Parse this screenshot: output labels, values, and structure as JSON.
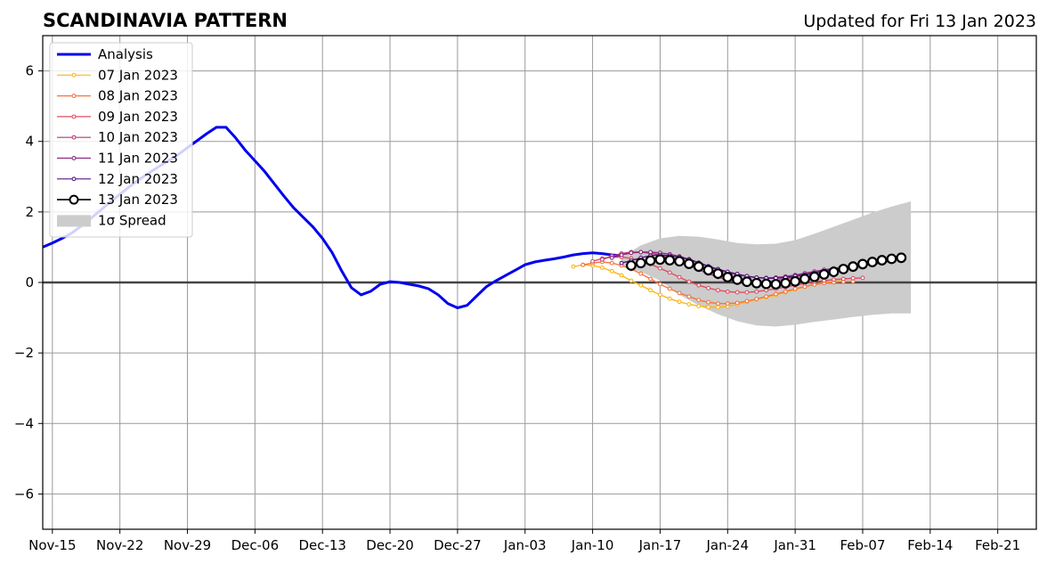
{
  "chart_data": {
    "type": "line",
    "title": "SCANDINAVIA PATTERN",
    "subtitle": "Updated for Fri 13 Jan 2023",
    "xlabel": "",
    "ylabel": "",
    "x_range": [
      "2022-11-14",
      "2023-02-25"
    ],
    "ylim": [
      -7,
      7
    ],
    "y_ticks": [
      -6,
      -4,
      -2,
      0,
      2,
      4,
      6
    ],
    "y_tick_labels": [
      "−6",
      "−4",
      "−2",
      "0",
      "2",
      "4",
      "6"
    ],
    "x_ticks": [
      {
        "date": "2022-11-15",
        "label": "Nov-15"
      },
      {
        "date": "2022-11-22",
        "label": "Nov-22"
      },
      {
        "date": "2022-11-29",
        "label": "Nov-29"
      },
      {
        "date": "2022-12-06",
        "label": "Dec-06"
      },
      {
        "date": "2022-12-13",
        "label": "Dec-13"
      },
      {
        "date": "2022-12-20",
        "label": "Dec-20"
      },
      {
        "date": "2022-12-27",
        "label": "Dec-27"
      },
      {
        "date": "2023-01-03",
        "label": "Jan-03"
      },
      {
        "date": "2023-01-10",
        "label": "Jan-10"
      },
      {
        "date": "2023-01-17",
        "label": "Jan-17"
      },
      {
        "date": "2023-01-24",
        "label": "Jan-24"
      },
      {
        "date": "2023-01-31",
        "label": "Jan-31"
      },
      {
        "date": "2023-02-07",
        "label": "Feb-07"
      },
      {
        "date": "2023-02-14",
        "label": "Feb-14"
      },
      {
        "date": "2023-02-21",
        "label": "Feb-21"
      }
    ],
    "grid": true,
    "legend_position": "top-left",
    "analysis": {
      "name": "Analysis",
      "color": "#0000ee",
      "x": [
        "2022-11-14",
        "2022-11-15",
        "2022-11-16",
        "2022-11-17",
        "2022-11-18",
        "2022-11-19",
        "2022-11-20",
        "2022-11-21",
        "2022-11-22",
        "2022-11-23",
        "2022-11-24",
        "2022-11-25",
        "2022-11-26",
        "2022-11-27",
        "2022-11-28",
        "2022-11-29",
        "2022-11-30",
        "2022-12-01",
        "2022-12-02",
        "2022-12-03",
        "2022-12-04",
        "2022-12-05",
        "2022-12-06",
        "2022-12-07",
        "2022-12-08",
        "2022-12-09",
        "2022-12-10",
        "2022-12-11",
        "2022-12-12",
        "2022-12-13",
        "2022-12-14",
        "2022-12-15",
        "2022-12-16",
        "2022-12-17",
        "2022-12-18",
        "2022-12-19",
        "2022-12-20",
        "2022-12-21",
        "2022-12-22",
        "2022-12-23",
        "2022-12-24",
        "2022-12-25",
        "2022-12-26",
        "2022-12-27",
        "2022-12-28",
        "2022-12-29",
        "2022-12-30",
        "2022-12-31",
        "2023-01-01",
        "2023-01-02",
        "2023-01-03",
        "2023-01-04",
        "2023-01-05",
        "2023-01-06",
        "2023-01-07",
        "2023-01-08",
        "2023-01-09",
        "2023-01-10",
        "2023-01-11",
        "2023-01-12",
        "2023-01-13"
      ],
      "y": [
        1.0,
        1.12,
        1.25,
        1.4,
        1.6,
        1.82,
        2.05,
        2.28,
        2.5,
        2.72,
        2.92,
        3.1,
        3.28,
        3.45,
        3.62,
        3.82,
        4.02,
        4.22,
        4.4,
        4.4,
        4.1,
        3.75,
        3.45,
        3.15,
        2.8,
        2.45,
        2.12,
        1.85,
        1.58,
        1.25,
        0.85,
        0.32,
        -0.15,
        -0.35,
        -0.25,
        -0.05,
        0.02,
        0.0,
        -0.05,
        -0.1,
        -0.18,
        -0.35,
        -0.6,
        -0.72,
        -0.65,
        -0.38,
        -0.12,
        0.05,
        0.2,
        0.35,
        0.5,
        0.58,
        0.63,
        0.67,
        0.72,
        0.78,
        0.82,
        0.84,
        0.82,
        0.78,
        0.76
      ]
    },
    "spread": {
      "name": "1σ Spread",
      "color": "#cccccc",
      "x": [
        "2023-01-13",
        "2023-01-15",
        "2023-01-17",
        "2023-01-19",
        "2023-01-21",
        "2023-01-23",
        "2023-01-25",
        "2023-01-27",
        "2023-01-29",
        "2023-01-31",
        "2023-02-02",
        "2023-02-04",
        "2023-02-06",
        "2023-02-08",
        "2023-02-10",
        "2023-02-12"
      ],
      "upper": [
        0.72,
        1.05,
        1.25,
        1.32,
        1.3,
        1.22,
        1.12,
        1.08,
        1.1,
        1.2,
        1.38,
        1.58,
        1.78,
        1.98,
        2.15,
        2.3
      ],
      "lower": [
        0.45,
        0.3,
        0.05,
        -0.35,
        -0.65,
        -0.9,
        -1.1,
        -1.22,
        -1.25,
        -1.2,
        -1.12,
        -1.05,
        -0.98,
        -0.92,
        -0.88,
        -0.88
      ]
    },
    "series": [
      {
        "name": "07 Jan 2023",
        "color": "#fbb61a",
        "x": [
          "2023-01-08",
          "2023-01-09",
          "2023-01-10",
          "2023-01-11",
          "2023-01-12",
          "2023-01-13",
          "2023-01-14",
          "2023-01-15",
          "2023-01-16",
          "2023-01-17",
          "2023-01-18",
          "2023-01-19",
          "2023-01-20",
          "2023-01-21",
          "2023-01-22",
          "2023-01-23",
          "2023-01-24",
          "2023-01-25",
          "2023-01-26",
          "2023-01-27",
          "2023-01-28",
          "2023-01-29",
          "2023-01-30",
          "2023-01-31",
          "2023-02-01",
          "2023-02-02",
          "2023-02-03",
          "2023-02-04",
          "2023-02-05"
        ],
        "y": [
          0.45,
          0.5,
          0.48,
          0.42,
          0.32,
          0.2,
          0.05,
          -0.08,
          -0.22,
          -0.35,
          -0.46,
          -0.55,
          -0.62,
          -0.67,
          -0.7,
          -0.7,
          -0.68,
          -0.62,
          -0.55,
          -0.48,
          -0.42,
          -0.35,
          -0.28,
          -0.2,
          -0.12,
          -0.05,
          0.0,
          0.03,
          0.05
        ]
      },
      {
        "name": "08 Jan 2023",
        "color": "#f3763f",
        "x": [
          "2023-01-09",
          "2023-01-10",
          "2023-01-11",
          "2023-01-12",
          "2023-01-13",
          "2023-01-14",
          "2023-01-15",
          "2023-01-16",
          "2023-01-17",
          "2023-01-18",
          "2023-01-19",
          "2023-01-20",
          "2023-01-21",
          "2023-01-22",
          "2023-01-23",
          "2023-01-24",
          "2023-01-25",
          "2023-01-26",
          "2023-01-27",
          "2023-01-28",
          "2023-01-29",
          "2023-01-30",
          "2023-01-31",
          "2023-02-01",
          "2023-02-02",
          "2023-02-03",
          "2023-02-04",
          "2023-02-05",
          "2023-02-06"
        ],
        "y": [
          0.5,
          0.55,
          0.58,
          0.55,
          0.48,
          0.38,
          0.25,
          0.1,
          -0.05,
          -0.18,
          -0.3,
          -0.4,
          -0.5,
          -0.56,
          -0.6,
          -0.6,
          -0.58,
          -0.53,
          -0.47,
          -0.4,
          -0.33,
          -0.26,
          -0.18,
          -0.12,
          -0.06,
          -0.02,
          0.0,
          0.02,
          0.03
        ]
      },
      {
        "name": "09 Jan 2023",
        "color": "#dd4f63",
        "x": [
          "2023-01-10",
          "2023-01-11",
          "2023-01-12",
          "2023-01-13",
          "2023-01-14",
          "2023-01-15",
          "2023-01-16",
          "2023-01-17",
          "2023-01-18",
          "2023-01-19",
          "2023-01-20",
          "2023-01-21",
          "2023-01-22",
          "2023-01-23",
          "2023-01-24",
          "2023-01-25",
          "2023-01-26",
          "2023-01-27",
          "2023-01-28",
          "2023-01-29",
          "2023-01-30",
          "2023-01-31",
          "2023-02-01",
          "2023-02-02",
          "2023-02-03",
          "2023-02-04",
          "2023-02-05",
          "2023-02-06",
          "2023-02-07"
        ],
        "y": [
          0.6,
          0.68,
          0.72,
          0.72,
          0.68,
          0.62,
          0.52,
          0.4,
          0.28,
          0.15,
          0.02,
          -0.08,
          -0.16,
          -0.22,
          -0.26,
          -0.28,
          -0.28,
          -0.26,
          -0.22,
          -0.18,
          -0.13,
          -0.08,
          -0.03,
          0.02,
          0.05,
          0.08,
          0.1,
          0.12,
          0.13
        ]
      },
      {
        "name": "10 Jan 2023",
        "color": "#b5367a",
        "x": [
          "2023-01-11",
          "2023-01-12",
          "2023-01-13",
          "2023-01-14",
          "2023-01-15",
          "2023-01-16",
          "2023-01-17",
          "2023-01-18",
          "2023-01-19",
          "2023-01-20",
          "2023-01-21",
          "2023-01-22",
          "2023-01-23",
          "2023-01-24",
          "2023-01-25",
          "2023-01-26",
          "2023-01-27",
          "2023-01-28",
          "2023-01-29",
          "2023-01-30",
          "2023-01-31",
          "2023-02-01",
          "2023-02-02",
          "2023-02-03",
          "2023-02-04",
          "2023-02-05",
          "2023-02-06",
          "2023-02-07",
          "2023-02-08"
        ],
        "y": [
          0.65,
          0.75,
          0.82,
          0.86,
          0.86,
          0.83,
          0.78,
          0.7,
          0.6,
          0.48,
          0.36,
          0.25,
          0.15,
          0.07,
          0.02,
          -0.02,
          -0.02,
          0.0,
          0.05,
          0.1,
          0.16,
          0.22,
          0.28,
          0.33,
          0.38,
          0.42,
          0.46,
          0.5,
          0.52
        ]
      },
      {
        "name": "11 Jan 2023",
        "color": "#8c2981",
        "x": [
          "2023-01-12",
          "2023-01-13",
          "2023-01-14",
          "2023-01-15",
          "2023-01-16",
          "2023-01-17",
          "2023-01-18",
          "2023-01-19",
          "2023-01-20",
          "2023-01-21",
          "2023-01-22",
          "2023-01-23",
          "2023-01-24",
          "2023-01-25",
          "2023-01-26",
          "2023-01-27",
          "2023-01-28",
          "2023-01-29",
          "2023-01-30",
          "2023-01-31",
          "2023-02-01",
          "2023-02-02",
          "2023-02-03",
          "2023-02-04",
          "2023-02-05",
          "2023-02-06",
          "2023-02-07",
          "2023-02-08",
          "2023-02-09"
        ],
        "y": [
          0.7,
          0.78,
          0.84,
          0.86,
          0.86,
          0.84,
          0.8,
          0.74,
          0.66,
          0.56,
          0.46,
          0.36,
          0.28,
          0.22,
          0.17,
          0.14,
          0.13,
          0.14,
          0.17,
          0.21,
          0.26,
          0.31,
          0.36,
          0.4,
          0.44,
          0.47,
          0.5,
          0.52,
          0.54
        ]
      },
      {
        "name": "12 Jan 2023",
        "color": "#56147d",
        "x": [
          "2023-01-13",
          "2023-01-14",
          "2023-01-15",
          "2023-01-16",
          "2023-01-17",
          "2023-01-18",
          "2023-01-19",
          "2023-01-20",
          "2023-01-21",
          "2023-01-22",
          "2023-01-23",
          "2023-01-24",
          "2023-01-25",
          "2023-01-26",
          "2023-01-27",
          "2023-01-28",
          "2023-01-29",
          "2023-01-30",
          "2023-01-31",
          "2023-02-01",
          "2023-02-02",
          "2023-02-03",
          "2023-02-04",
          "2023-02-05",
          "2023-02-06",
          "2023-02-07",
          "2023-02-08",
          "2023-02-09",
          "2023-02-10"
        ],
        "y": [
          0.55,
          0.62,
          0.7,
          0.76,
          0.78,
          0.76,
          0.72,
          0.65,
          0.56,
          0.46,
          0.38,
          0.3,
          0.24,
          0.18,
          0.14,
          0.12,
          0.12,
          0.14,
          0.18,
          0.22,
          0.27,
          0.32,
          0.37,
          0.41,
          0.45,
          0.49,
          0.53,
          0.57,
          0.6
        ]
      },
      {
        "name": "13 Jan 2023",
        "color": "#000000",
        "x": [
          "2023-01-14",
          "2023-01-15",
          "2023-01-16",
          "2023-01-17",
          "2023-01-18",
          "2023-01-19",
          "2023-01-20",
          "2023-01-21",
          "2023-01-22",
          "2023-01-23",
          "2023-01-24",
          "2023-01-25",
          "2023-01-26",
          "2023-01-27",
          "2023-01-28",
          "2023-01-29",
          "2023-01-30",
          "2023-01-31",
          "2023-02-01",
          "2023-02-02",
          "2023-02-03",
          "2023-02-04",
          "2023-02-05",
          "2023-02-06",
          "2023-02-07",
          "2023-02-08",
          "2023-02-09",
          "2023-02-10",
          "2023-02-11"
        ],
        "y": [
          0.48,
          0.55,
          0.62,
          0.65,
          0.63,
          0.6,
          0.53,
          0.45,
          0.35,
          0.25,
          0.15,
          0.08,
          0.02,
          -0.02,
          -0.04,
          -0.05,
          -0.02,
          0.03,
          0.1,
          0.16,
          0.23,
          0.3,
          0.38,
          0.45,
          0.52,
          0.58,
          0.63,
          0.67,
          0.7
        ]
      }
    ]
  }
}
